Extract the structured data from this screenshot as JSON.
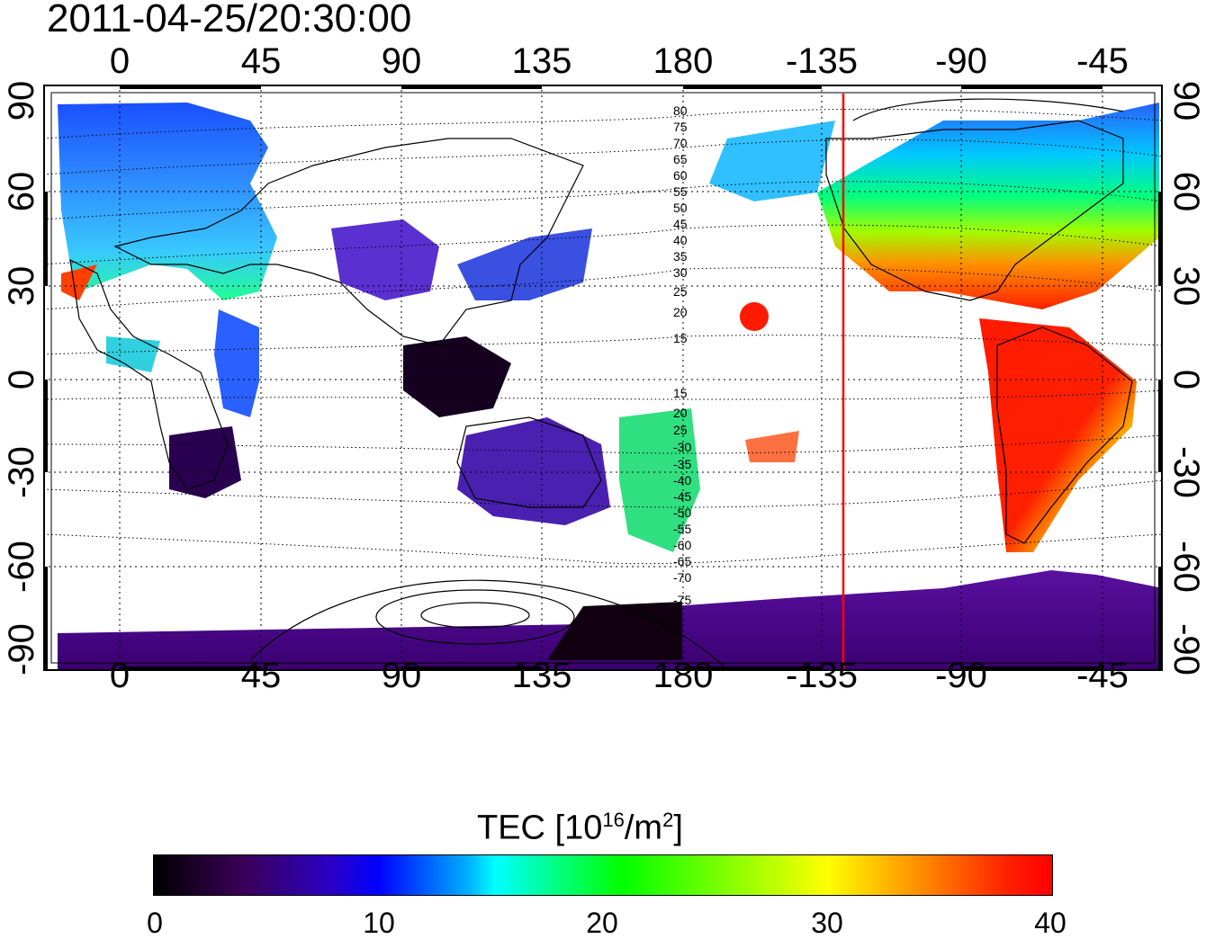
{
  "timestamp": "2011-04-25/20:30:00",
  "x_tick_labels": [
    "0",
    "45",
    "90",
    "135",
    "180",
    "-135",
    "-90",
    "-45"
  ],
  "y_tick_labels": [
    "90",
    "60",
    "30",
    "0",
    "-30",
    "-60",
    "-90"
  ],
  "contour_labels_north": [
    "80",
    "75",
    "70",
    "65",
    "60",
    "55",
    "50",
    "45",
    "40",
    "35",
    "30",
    "25",
    "20",
    "15"
  ],
  "contour_labels_south": [
    "15",
    "20",
    "25",
    "-30",
    "-35",
    "-40",
    "-45",
    "-50",
    "-55",
    "-60",
    "-65",
    "-70",
    "-75"
  ],
  "colorbar": {
    "label_text": "TEC  [10",
    "label_exp": "16",
    "label_unit": "/m",
    "label_unit_exp": "2",
    "label_close": "]",
    "ticks": [
      "0",
      "10",
      "20",
      "30",
      "40"
    ],
    "range": [
      0,
      40
    ]
  },
  "map": {
    "terminator_marker_color": "#ff0000",
    "terminator_longitude": -130
  }
}
